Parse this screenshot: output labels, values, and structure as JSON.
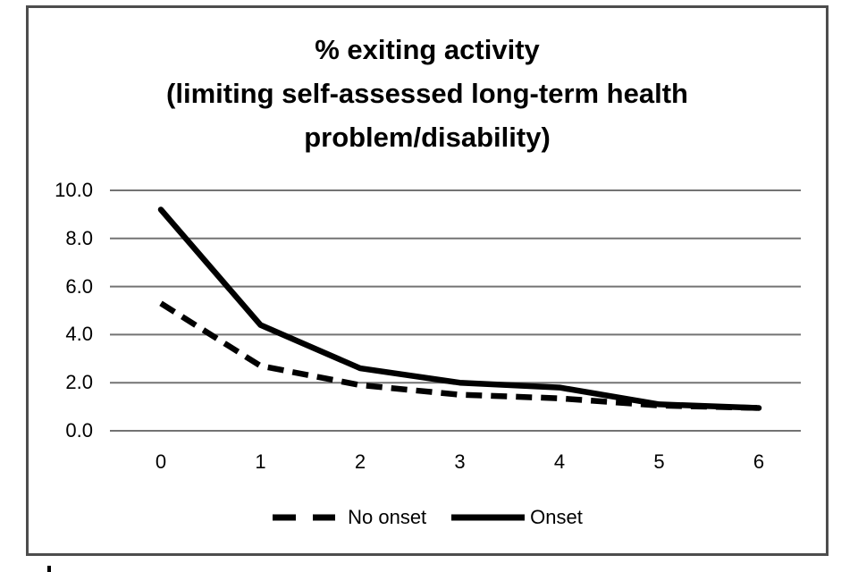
{
  "chart_data": {
    "type": "line",
    "title": "% exiting activity (limiting self-assessed long-term health problem/disability)",
    "title_lines": [
      "% exiting activity",
      "(limiting self-assessed long-term health",
      "problem/disability)"
    ],
    "x_labels": [
      "0",
      "1",
      "2",
      "3",
      "4",
      "5",
      "6"
    ],
    "xlabel": "",
    "ylabel": "",
    "ylim": [
      0,
      10
    ],
    "y_ticks": [
      10,
      8,
      6,
      4,
      2,
      0
    ],
    "y_tick_labels": [
      "10.0",
      "8.0",
      "6.0",
      "4.0",
      "2.0",
      "0.0"
    ],
    "grid": "horizontal",
    "gridline_color": "#737373",
    "line_color": "#000000",
    "legend_position": "bottom",
    "series": [
      {
        "name": "No onset",
        "style": "dashed",
        "color": "#000000",
        "values": [
          5.3,
          2.7,
          1.9,
          1.5,
          1.35,
          1.05,
          0.95
        ]
      },
      {
        "name": "Onset",
        "style": "solid",
        "color": "#000000",
        "values": [
          9.2,
          4.4,
          2.6,
          2.0,
          1.8,
          1.1,
          0.95
        ]
      }
    ]
  }
}
